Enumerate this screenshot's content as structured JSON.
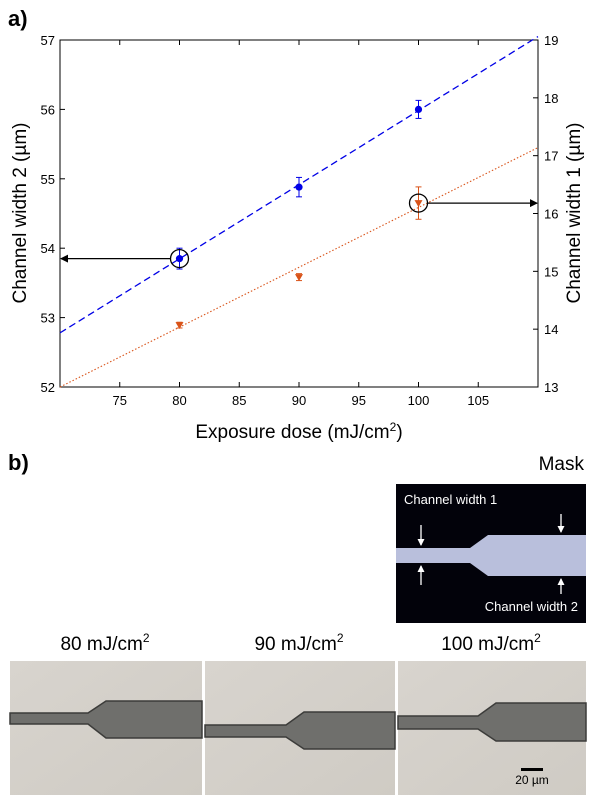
{
  "panels": {
    "a": "a)",
    "b": "b)"
  },
  "chart_data": {
    "type": "scatter",
    "xlabel": "Exposure dose (mJ/cm",
    "xlabel_sup": "2",
    "xlabel_tail": ")",
    "ylabel_left": "Channel width 2 (µm)",
    "ylabel_right": "Channel width 1 (µm)",
    "xlim": [
      70,
      110
    ],
    "ylim_left": [
      52,
      57
    ],
    "ylim_right": [
      13,
      19
    ],
    "x_ticks": [
      75,
      80,
      85,
      90,
      95,
      100,
      105
    ],
    "y_left_ticks": [
      52,
      53,
      54,
      55,
      56,
      57
    ],
    "y_right_ticks": [
      13,
      14,
      15,
      16,
      17,
      18,
      19
    ],
    "grid": false,
    "series": [
      {
        "axis": "left",
        "color": "#0000e6",
        "marker": "circle",
        "x": [
          80,
          90,
          100
        ],
        "y": [
          53.85,
          54.88,
          56.0
        ],
        "err": [
          0.15,
          0.14,
          0.13
        ],
        "fit": {
          "style": "dashed",
          "x": [
            70,
            110
          ],
          "y": [
            52.78,
            57.05
          ]
        }
      },
      {
        "axis": "right",
        "color": "#d95319",
        "marker": "triangle-down",
        "x": [
          80,
          90,
          100
        ],
        "y": [
          14.07,
          14.9,
          16.18
        ],
        "err": [
          0.05,
          0.06,
          0.28
        ],
        "fit": {
          "style": "dotted",
          "x": [
            70,
            110
          ],
          "y": [
            13.0,
            17.14
          ]
        }
      }
    ],
    "highlights": [
      {
        "axis": "left",
        "x": 80,
        "y": 53.85,
        "arrow": "left"
      },
      {
        "axis": "right",
        "x": 100,
        "y": 16.18,
        "arrow": "right"
      }
    ]
  },
  "mask": {
    "title": "Mask",
    "label_top": "Channel width 1",
    "label_bottom": "Channel width 2",
    "background": "#02020a",
    "channel_color": "#b9bfdc"
  },
  "photos": [
    {
      "dose": "80 mJ/cm",
      "sup": "2"
    },
    {
      "dose": "90 mJ/cm",
      "sup": "2"
    },
    {
      "dose": "100 mJ/cm",
      "sup": "2"
    }
  ],
  "scale_bar": "20 µm"
}
